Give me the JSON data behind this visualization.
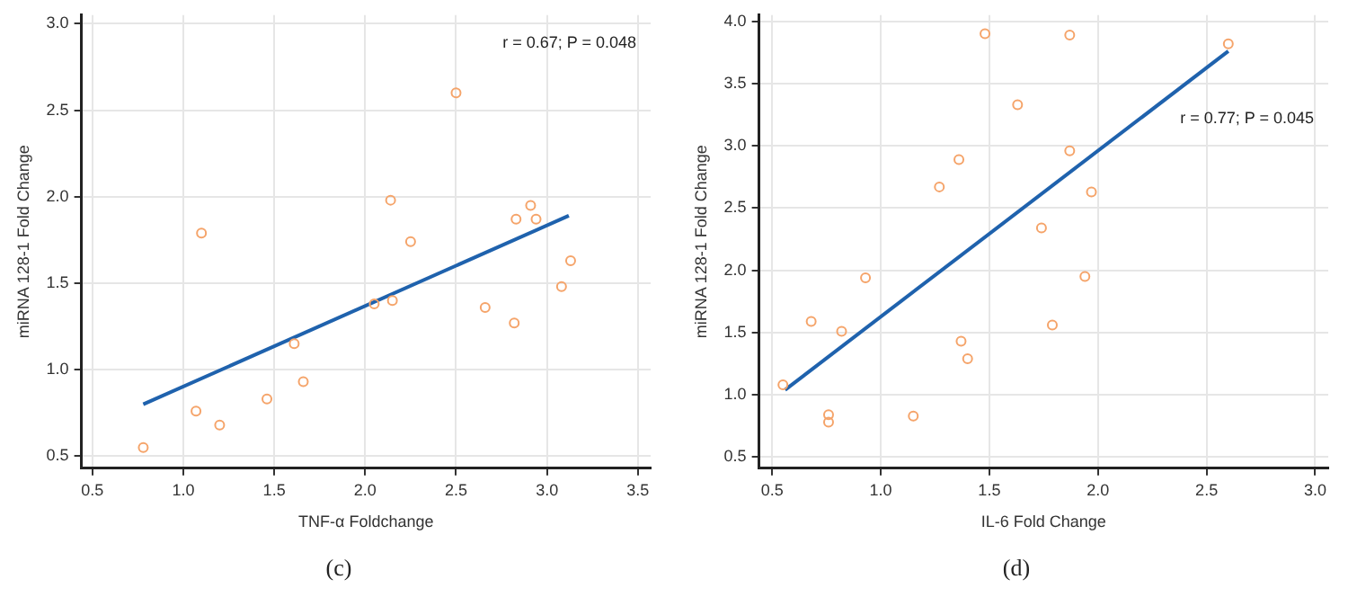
{
  "chart_data": [
    {
      "type": "scatter",
      "xlabel": "TNF-α Foldchange",
      "ylabel": "miRNA 128-1 Fold Change",
      "annotations": [
        "r = 0.67; P = 0.048",
        "(c)"
      ],
      "xlim": [
        0.44,
        3.57
      ],
      "ylim": [
        0.43,
        3.05
      ],
      "xticks": [
        0.5,
        {
          "value": 1,
          "label": "1.0"
        },
        1.5,
        {
          "value": 2,
          "label": "2.0"
        },
        2.5,
        {
          "value": 3,
          "label": "3.0"
        },
        3.5
      ],
      "yticks": [
        0.5,
        {
          "value": 1,
          "label": "1.0"
        },
        1.5,
        {
          "value": 2,
          "label": "2.0"
        },
        2.5,
        {
          "value": 3,
          "label": "3.0"
        }
      ],
      "grid": true,
      "legend": false,
      "series": [
        {
          "marker": "circle",
          "color": "#f5a46a",
          "x": [
            0.78,
            1.07,
            1.1,
            1.2,
            1.46,
            1.61,
            1.66,
            2.05,
            2.14,
            2.15,
            2.25,
            2.5,
            2.66,
            2.82,
            2.83,
            2.91,
            2.94,
            3.08,
            3.13
          ],
          "values": [
            0.55,
            0.76,
            1.79,
            0.68,
            0.83,
            1.15,
            0.93,
            1.38,
            1.98,
            1.4,
            1.74,
            2.6,
            1.36,
            1.27,
            1.87,
            1.95,
            1.87,
            1.48,
            1.63
          ]
        },
        {
          "type": "line",
          "marker": "none",
          "color": "#1f62ad",
          "x": [
            0.78,
            3.12
          ],
          "values": [
            0.8,
            1.89
          ],
          "line_style": "solid"
        }
      ]
    },
    {
      "type": "scatter",
      "xlabel": "IL-6 Fold Change",
      "ylabel": "miRNA 128-1 Fold Change",
      "annotations": [
        "r = 0.77; P = 0.045",
        "(d)"
      ],
      "xlim": [
        0.44,
        3.06
      ],
      "ylim": [
        0.41,
        4.05
      ],
      "xticks": [
        0.5,
        {
          "value": 1,
          "label": "1.0"
        },
        1.5,
        {
          "value": 2,
          "label": "2.0"
        },
        2.5,
        {
          "value": 3,
          "label": "3.0"
        }
      ],
      "yticks": [
        0.5,
        {
          "value": 1,
          "label": "1.0"
        },
        1.5,
        {
          "value": 2,
          "label": "2.0"
        },
        2.5,
        {
          "value": 3,
          "label": "3.0"
        },
        3.5,
        {
          "value": 4,
          "label": "4.0"
        }
      ],
      "grid": true,
      "legend": false,
      "series": [
        {
          "marker": "circle",
          "color": "#f5a46a",
          "x": [
            0.55,
            0.68,
            0.76,
            0.76,
            0.82,
            0.93,
            1.15,
            1.27,
            1.36,
            1.37,
            1.4,
            1.48,
            1.63,
            1.74,
            1.79,
            1.87,
            1.87,
            1.94,
            1.97,
            2.6
          ],
          "values": [
            1.08,
            1.59,
            0.84,
            0.78,
            1.51,
            1.94,
            0.83,
            2.67,
            2.89,
            1.43,
            1.29,
            3.9,
            3.33,
            2.34,
            1.56,
            3.89,
            2.96,
            1.95,
            2.63,
            3.82
          ]
        },
        {
          "type": "line",
          "marker": "none",
          "color": "#1f62ad",
          "x": [
            0.56,
            2.6
          ],
          "values": [
            1.04,
            3.76
          ],
          "line_style": "solid"
        }
      ]
    }
  ]
}
